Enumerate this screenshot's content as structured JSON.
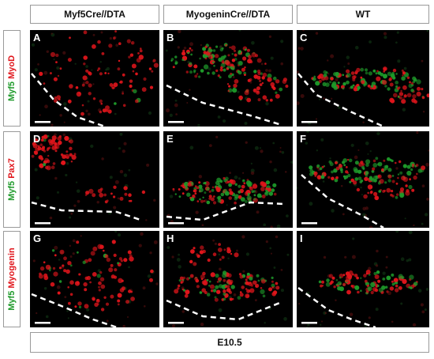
{
  "columns": [
    {
      "label": "Myf5Cre//DTA"
    },
    {
      "label": "MyogeninCre//DTA"
    },
    {
      "label": "WT"
    }
  ],
  "rows": [
    {
      "green": "Myf5",
      "red": "MyoD"
    },
    {
      "green": "Myf5",
      "red": "Pax7"
    },
    {
      "green": "Myf5",
      "red": "Myogenin"
    }
  ],
  "panels": [
    "A",
    "B",
    "C",
    "D",
    "E",
    "F",
    "G",
    "H",
    "I"
  ],
  "footer": {
    "label": "E10.5"
  },
  "colors": {
    "green_channel": "#1e9a2a",
    "red_channel": "#e0151b",
    "background": "#000000",
    "dashed_line": "#ffffff",
    "scale_bar": "#ffffff"
  }
}
